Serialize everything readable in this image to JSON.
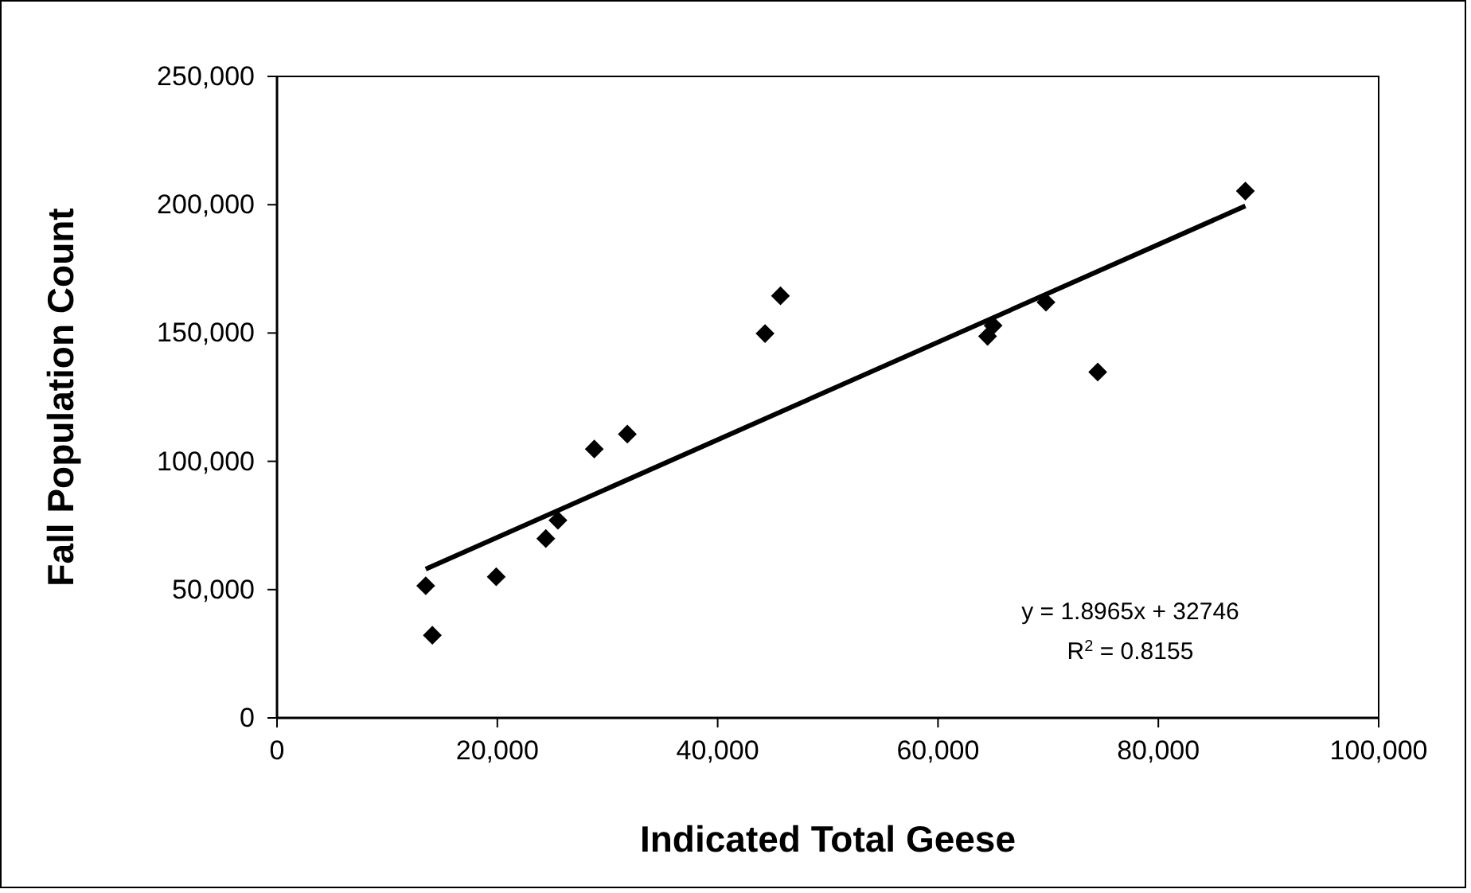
{
  "chart_data": {
    "type": "scatter",
    "xlabel": "Indicated Total Geese",
    "ylabel": "Fall Population Count",
    "xlim": [
      0,
      100000
    ],
    "xticks": [
      {
        "value": 0,
        "label": "0"
      },
      {
        "value": 20000,
        "label": "20,000"
      },
      {
        "value": 40000,
        "label": "40,000"
      },
      {
        "value": 60000,
        "label": "60,000"
      },
      {
        "value": 80000,
        "label": "80,000"
      },
      {
        "value": 100000,
        "label": "100,000"
      }
    ],
    "ylim": [
      0,
      250000
    ],
    "yticks": [
      {
        "value": 0,
        "label": "0"
      },
      {
        "value": 50000,
        "label": "50,000"
      },
      {
        "value": 100000,
        "label": "100,000"
      },
      {
        "value": 150000,
        "label": "150,000"
      },
      {
        "value": 200000,
        "label": "200,000"
      },
      {
        "value": 250000,
        "label": "250,000"
      }
    ],
    "grid": false,
    "marker": "diamond",
    "series": [
      {
        "color": "#000000",
        "x": [
          13500,
          14100,
          19900,
          24400,
          25500,
          28800,
          31800,
          44300,
          45700,
          64500,
          65000,
          69800,
          74500,
          87900
        ],
        "values": [
          51500,
          32200,
          55000,
          69900,
          77000,
          104800,
          110600,
          149800,
          164500,
          148700,
          152900,
          162000,
          134800,
          205300
        ]
      },
      {
        "type": "line",
        "color": "#000000",
        "line_style": "solid",
        "marker": "none",
        "x": [
          13500,
          87900
        ],
        "values": [
          58000,
          199500
        ]
      }
    ],
    "annotations": [
      "y = 1.8965x + 32746",
      "R$^{2}$ = 0.8155"
    ]
  }
}
